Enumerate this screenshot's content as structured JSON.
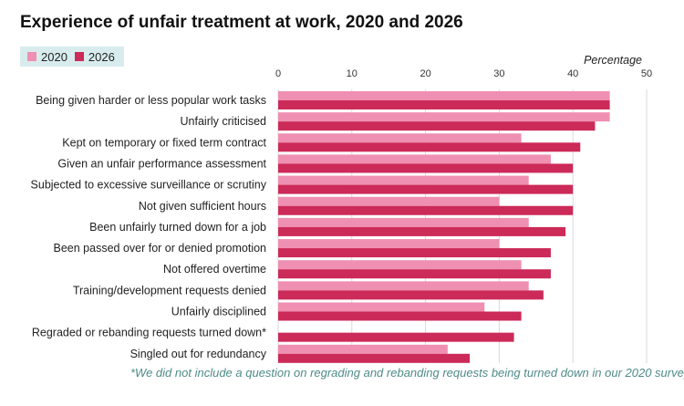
{
  "title": "Experience of unfair treatment at work, 2020 and 2026",
  "unit_label": "Percentage",
  "footnote": "*We did not include a question on regrading and rebanding requests being turned down in our 2020 survey",
  "colors": {
    "y2020": "#ef8fb1",
    "y2026": "#cc2a58",
    "grid": "#d9d9d9",
    "legend_bg": "#d8ecee"
  },
  "chart_data": {
    "type": "bar",
    "orientation": "horizontal",
    "categories": [
      "Being given harder or less popular work tasks",
      "Unfairly criticised",
      "Kept on temporary or fixed term contract",
      "Given an unfair performance assessment",
      "Subjected to excessive surveillance or scrutiny",
      "Not given sufficient hours",
      "Been unfairly turned down for a job",
      "Been passed over for or denied promotion",
      "Not offered overtime",
      "Training/development requests denied",
      "Unfairly disciplined",
      "Regraded or rebanding requests turned down*",
      "Singled out for redundancy"
    ],
    "series": [
      {
        "name": "2020",
        "values": [
          45,
          45,
          33,
          37,
          34,
          30,
          34,
          30,
          33,
          34,
          28,
          null,
          23
        ]
      },
      {
        "name": "2026",
        "values": [
          45,
          43,
          41,
          40,
          40,
          40,
          39,
          37,
          37,
          36,
          33,
          32,
          26
        ]
      }
    ],
    "xlim": [
      0,
      50
    ],
    "xticks": [
      0,
      10,
      20,
      30,
      40,
      50
    ],
    "xlabel": "Percentage",
    "legend_position": "top-left",
    "grid": true
  }
}
